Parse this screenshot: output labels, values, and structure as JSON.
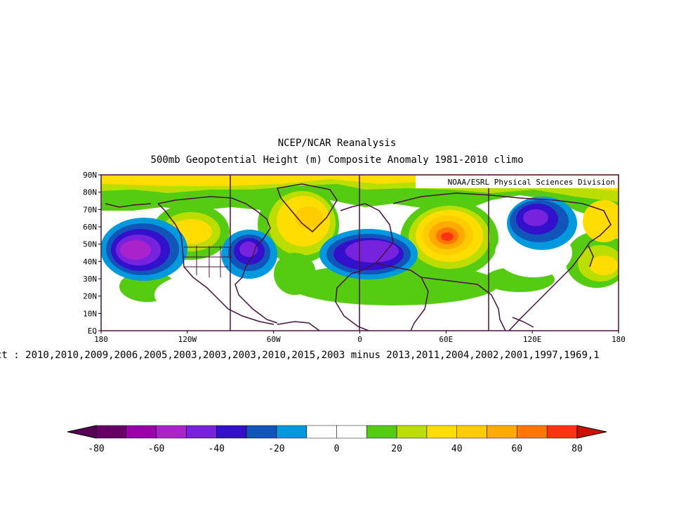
{
  "title": "NCEP/NCAR Reanalysis",
  "subtitle": "500mb Geopotential Height (m) Composite Anomaly 1981-2010 climo",
  "credit": "NOAA/ESRL Physical Sciences Division",
  "composite_text": "ct : 2010,2010,2009,2006,2005,2003,2003,2003,2010,2015,2003 minus 2013,2011,2004,2002,2001,1997,1969,1",
  "lat_labels": [
    "90N",
    "80N",
    "70N",
    "60N",
    "50N",
    "40N",
    "30N",
    "20N",
    "10N",
    "EQ"
  ],
  "lon_labels": [
    "180",
    "120W",
    "60W",
    "0",
    "60E",
    "120E",
    "180"
  ],
  "colorbar": {
    "labels": [
      "-80",
      "-60",
      "-40",
      "-20",
      "0",
      "20",
      "40",
      "60",
      "80"
    ],
    "colors": [
      "#660066",
      "#9900aa",
      "#aa22cc",
      "#7722dd",
      "#3311cc",
      "#1155bb",
      "#0099dd",
      "#ffffff",
      "#ffffff",
      "#55cc11",
      "#bbdd00",
      "#ffdd00",
      "#ffcc00",
      "#ffaa00",
      "#ff7700",
      "#ff3311"
    ],
    "low_arrow_color": "#550055",
    "high_arrow_color": "#cc1100"
  },
  "map": {
    "background_positive": "#55cc11",
    "anomalies": [
      {
        "label": "north-pacific-low",
        "lon": -152,
        "lat": 47,
        "value": -70
      },
      {
        "label": "eastern-us-low",
        "lon": -78,
        "lat": 45,
        "value": -50
      },
      {
        "label": "europe-low",
        "lon": 12,
        "lat": 43,
        "value": -45
      },
      {
        "label": "ural-high",
        "lon": 60,
        "lat": 54,
        "value": 65
      },
      {
        "label": "east-asia-low",
        "lon": 120,
        "lat": 62,
        "value": -40
      },
      {
        "label": "north-atlantic-high",
        "lon": -40,
        "lat": 52,
        "value": 35
      },
      {
        "label": "arctic-high",
        "lon": -100,
        "lat": 88,
        "value": 35
      }
    ]
  }
}
